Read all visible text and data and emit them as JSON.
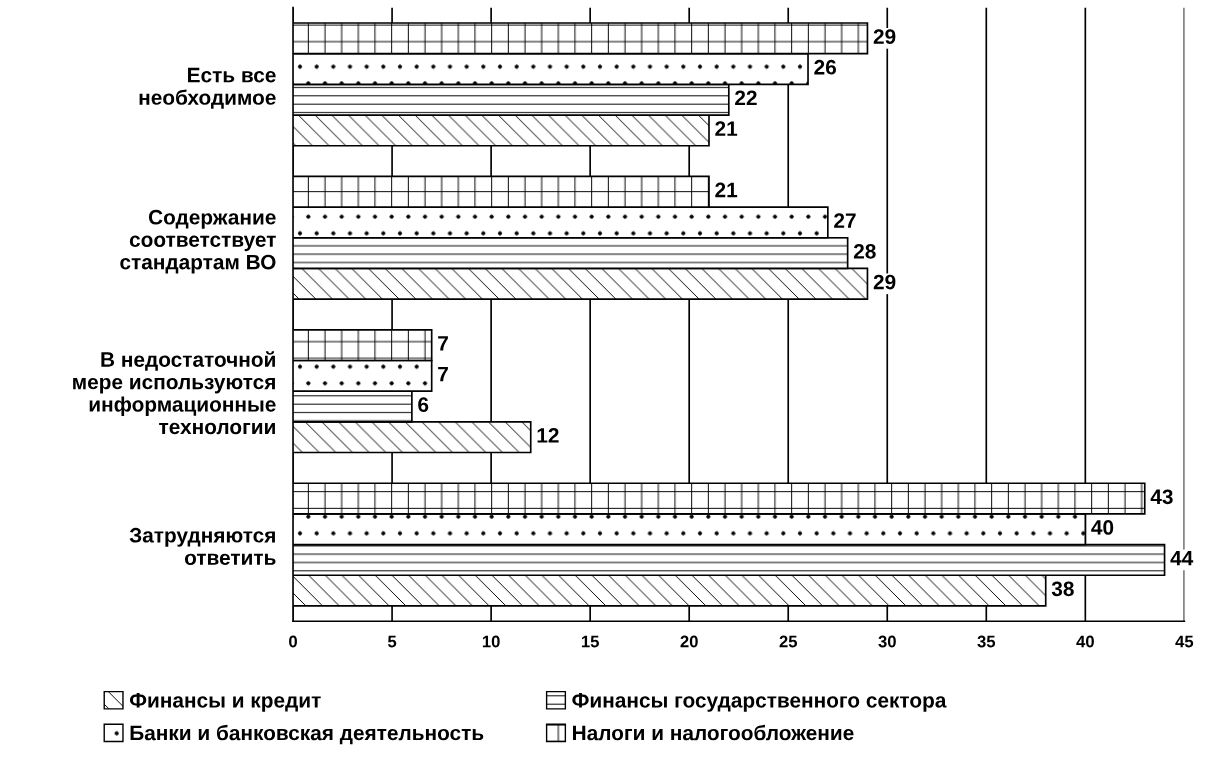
{
  "chart_data": {
    "type": "bar",
    "orientation": "horizontal",
    "categories": [
      "Есть все\nнеобходимое",
      "Содержание\nсоответствует\nстандартам ВО",
      "В недостаточной\nмере используются\nинформационные\nтехнологии",
      "Затрудняются\nответить"
    ],
    "series": [
      {
        "name": "Финансы и кредит",
        "color": "#000000",
        "values": [
          21,
          29,
          12,
          38
        ]
      },
      {
        "name": "Финансы государственного сектора",
        "color": "#000000",
        "values": [
          22,
          28,
          6,
          44
        ]
      },
      {
        "name": "Банки и банковская деятельность",
        "color": "#000000",
        "values": [
          26,
          27,
          7,
          40
        ]
      },
      {
        "name": "Налоги и налогообложение",
        "color": "#000000",
        "values": [
          29,
          21,
          7,
          43
        ]
      }
    ],
    "xlim": [
      0,
      45
    ],
    "xticks": [
      0,
      5,
      10,
      15,
      20,
      25,
      30,
      35,
      40,
      45
    ],
    "grid": "x",
    "legend": "bottom",
    "data_labels": true
  }
}
